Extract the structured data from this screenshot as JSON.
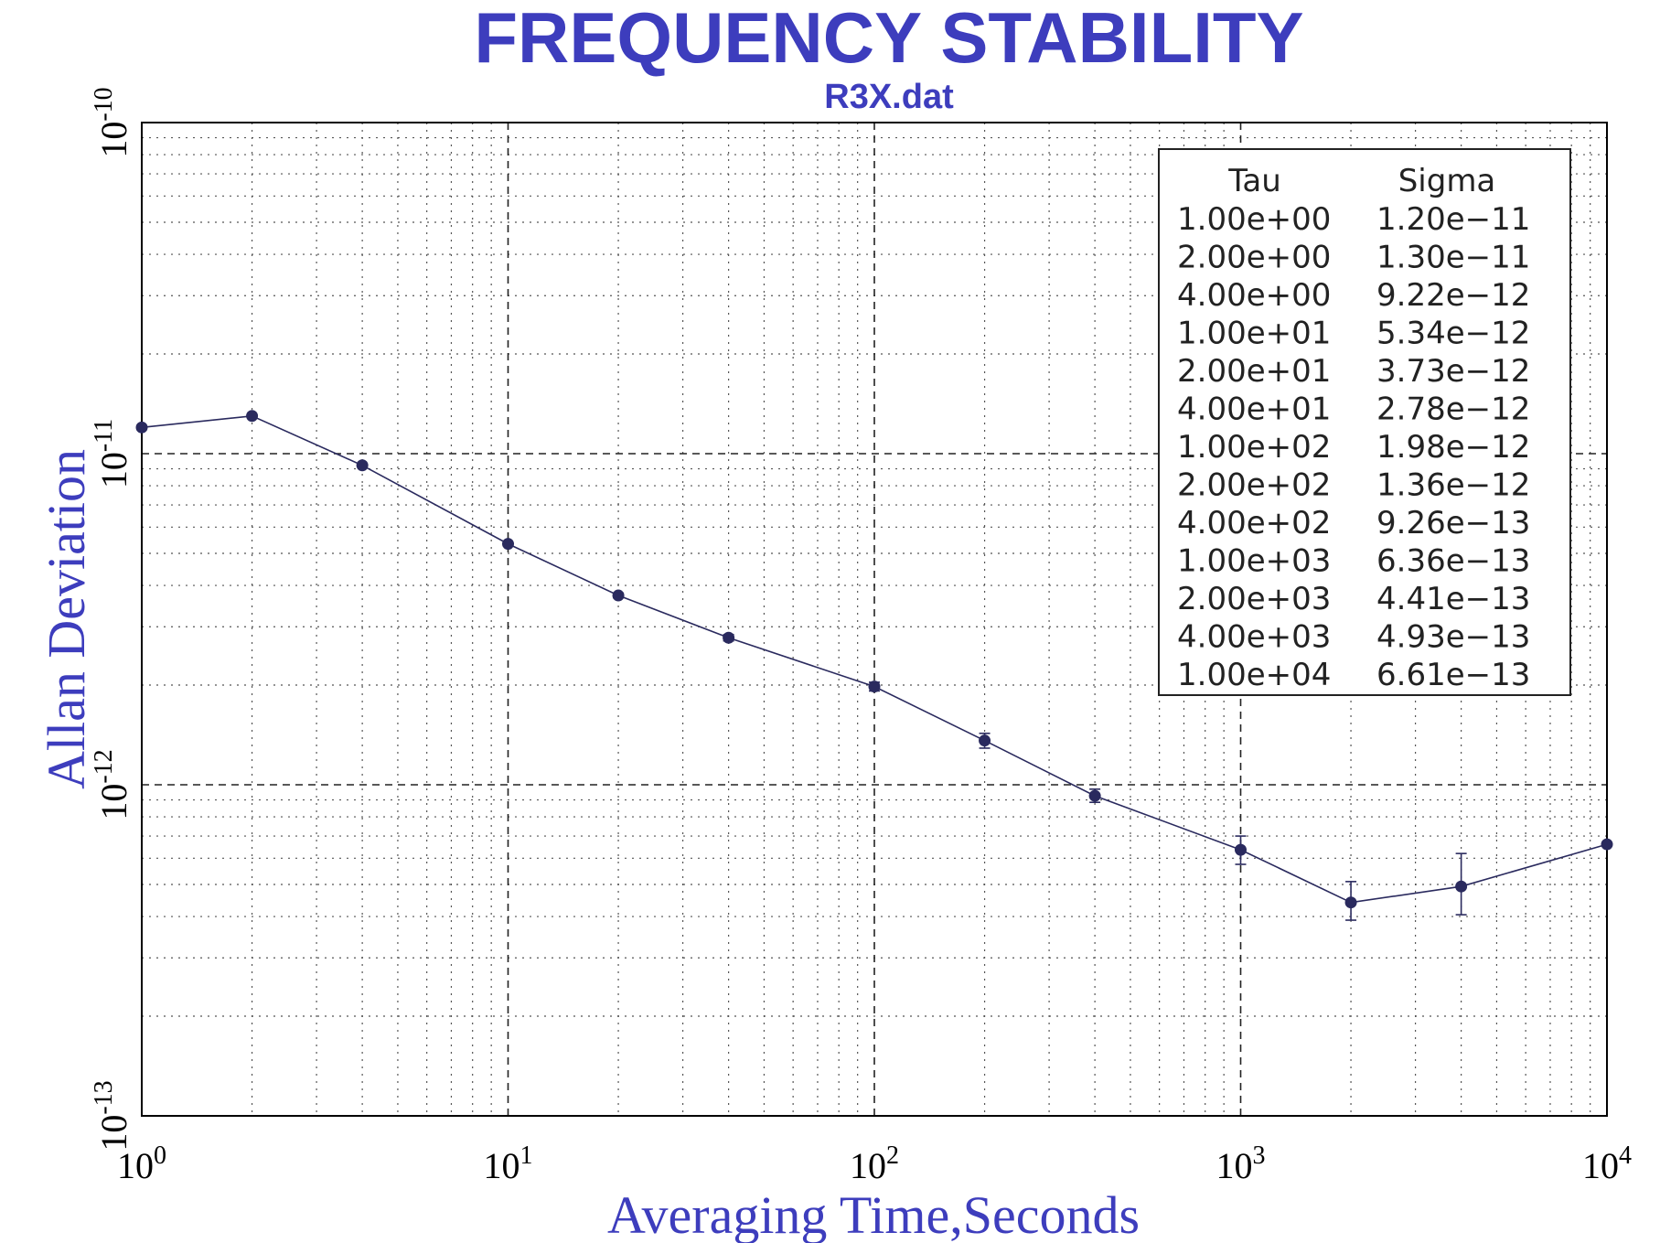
{
  "chart_data": {
    "type": "line",
    "title": "FREQUENCY STABILITY",
    "subtitle": "R3X.dat",
    "xlabel": "Averaging Time,Seconds",
    "ylabel": "Allan Deviation",
    "x_scale": "log",
    "y_scale": "log",
    "xlim": [
      1,
      10000
    ],
    "ylim": [
      1e-13,
      1e-10
    ],
    "grid": true,
    "x_ticks": [
      {
        "base": "10",
        "exp": "0"
      },
      {
        "base": "10",
        "exp": "1"
      },
      {
        "base": "10",
        "exp": "2"
      },
      {
        "base": "10",
        "exp": "3"
      },
      {
        "base": "10",
        "exp": "4"
      }
    ],
    "y_ticks": [
      {
        "base": "10",
        "exp": "-10"
      },
      {
        "base": "10",
        "exp": "-11"
      },
      {
        "base": "10",
        "exp": "-12"
      },
      {
        "base": "10",
        "exp": "-13"
      }
    ],
    "series": [
      {
        "x": [
          1,
          2,
          4,
          10,
          20,
          40,
          100,
          200,
          400,
          1000,
          2000,
          4000,
          10000
        ],
        "y": [
          1.2e-11,
          1.3e-11,
          9.22e-12,
          5.34e-12,
          3.73e-12,
          2.78e-12,
          1.98e-12,
          1.36e-12,
          9.26e-13,
          6.36e-13,
          4.41e-13,
          4.93e-13,
          6.61e-13
        ],
        "error_low": [
          1.19e-11,
          1.29e-11,
          9.15e-12,
          5.28e-12,
          3.67e-12,
          2.72e-12,
          1.92e-12,
          1.29e-12,
          8.85e-13,
          5.75e-13,
          3.9e-13,
          4.05e-13,
          6.61e-13
        ],
        "error_high": [
          1.21e-11,
          1.31e-11,
          9.29e-12,
          5.4e-12,
          3.79e-12,
          2.84e-12,
          2.04e-12,
          1.43e-12,
          9.7e-13,
          7e-13,
          5.1e-13,
          6.2e-13,
          6.61e-13
        ],
        "color": "#2a2a5e"
      }
    ],
    "legend_table": {
      "headers": [
        "Tau",
        "Sigma"
      ],
      "rows": [
        [
          "1.00e+00",
          "1.20e−11"
        ],
        [
          "2.00e+00",
          "1.30e−11"
        ],
        [
          "4.00e+00",
          "9.22e−12"
        ],
        [
          "1.00e+01",
          "5.34e−12"
        ],
        [
          "2.00e+01",
          "3.73e−12"
        ],
        [
          "4.00e+01",
          "2.78e−12"
        ],
        [
          "1.00e+02",
          "1.98e−12"
        ],
        [
          "2.00e+02",
          "1.36e−12"
        ],
        [
          "4.00e+02",
          "9.26e−13"
        ],
        [
          "1.00e+03",
          "6.36e−13"
        ],
        [
          "2.00e+03",
          "4.41e−13"
        ],
        [
          "4.00e+03",
          "4.93e−13"
        ],
        [
          "1.00e+04",
          "6.61e−13"
        ]
      ],
      "placement": "top-right"
    },
    "colors": {
      "title": "#3d3dbd",
      "line": "#2a2a5e",
      "grid": "#444444"
    }
  }
}
